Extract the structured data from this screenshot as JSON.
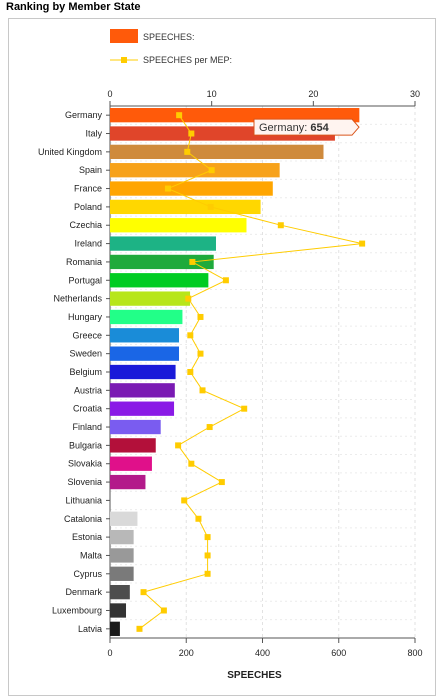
{
  "page_title": "Ranking by Member State",
  "tooltip": {
    "label": "Germany:",
    "value": "654"
  },
  "chart_data": {
    "type": "bar",
    "orientation": "horizontal",
    "title": "Ranking by Member State",
    "xlabel": "SPEECHES",
    "categories": [
      "Germany",
      "Italy",
      "United Kingdom",
      "Spain",
      "France",
      "Poland",
      "Czechia",
      "Ireland",
      "Romania",
      "Portugal",
      "Netherlands",
      "Hungary",
      "Greece",
      "Sweden",
      "Belgium",
      "Austria",
      "Croatia",
      "Finland",
      "Bulgaria",
      "Slovakia",
      "Slovenia",
      "Lithuania",
      "Catalonia",
      "Estonia",
      "Malta",
      "Cyprus",
      "Denmark",
      "Luxembourg",
      "Latvia"
    ],
    "colors": [
      "#ff5a0a",
      "#e0452a",
      "#cf8a3c",
      "#f7a21a",
      "#ffa500",
      "#ffd700",
      "#ffff00",
      "#1db385",
      "#1faa3c",
      "#00cc22",
      "#b7e61a",
      "#22ff88",
      "#1a8cd8",
      "#1a66e6",
      "#1a1ad9",
      "#7a1ab3",
      "#8a1ae6",
      "#7a5cf0",
      "#b3103a",
      "#e0108a",
      "#b31a8a",
      "#f5f5f5",
      "#d9d9d9",
      "#b8b8b8",
      "#999999",
      "#7a7a7a",
      "#4d4d4d",
      "#333333",
      "#1a1a1a"
    ],
    "series": [
      {
        "name": "SPEECHES:",
        "axis": "bottom",
        "type": "bar",
        "values": [
          654,
          590,
          560,
          445,
          427,
          395,
          358,
          278,
          272,
          258,
          210,
          190,
          181,
          181,
          172,
          170,
          168,
          133,
          120,
          110,
          93,
          0,
          72,
          62,
          62,
          62,
          52,
          42,
          26
        ]
      },
      {
        "name": "SPEECHES per MEP:",
        "axis": "top",
        "type": "line",
        "color": "#ffcc00",
        "values": [
          6.8,
          8.0,
          7.6,
          10.0,
          5.7,
          9.9,
          16.8,
          24.8,
          8.1,
          11.4,
          7.7,
          8.9,
          7.9,
          8.9,
          7.9,
          9.1,
          13.2,
          9.8,
          6.7,
          8.0,
          11.0,
          7.3,
          8.7,
          9.6,
          9.6,
          9.6,
          3.3,
          5.3,
          2.9
        ]
      }
    ],
    "x_bottom": {
      "min": 0,
      "max": 800,
      "ticks": [
        0,
        200,
        400,
        600,
        800
      ]
    },
    "x_top": {
      "min": 0,
      "max": 30,
      "ticks": [
        0,
        10,
        20,
        30
      ]
    },
    "legend_placement": "top-left"
  }
}
